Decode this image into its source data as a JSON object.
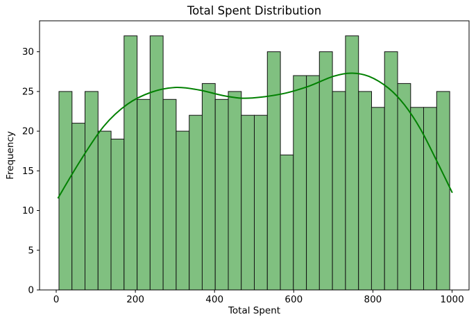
{
  "chart_data": {
    "type": "bar",
    "subtype": "histogram-with-kde-overlay",
    "title": "Total Spent Distribution",
    "xlabel": "Total Spent",
    "ylabel": "Frequency",
    "xlim": [
      -42,
      1043
    ],
    "ylim": [
      0,
      33.9
    ],
    "x_ticks": [
      0,
      200,
      400,
      600,
      800,
      1000
    ],
    "y_ticks": [
      0,
      5,
      10,
      15,
      20,
      25,
      30
    ],
    "grid": false,
    "legend": false,
    "bins": {
      "start": 7,
      "width": 32.9,
      "count": 30
    },
    "counts": [
      25,
      21,
      25,
      20,
      19,
      32,
      24,
      32,
      24,
      20,
      22,
      26,
      24,
      25,
      22,
      22,
      30,
      17,
      27,
      27,
      30,
      25,
      32,
      25,
      23,
      30,
      26,
      23,
      23,
      25
    ],
    "kde_curve": [
      [
        5,
        11.6
      ],
      [
        60,
        16.2
      ],
      [
        120,
        20.6
      ],
      [
        180,
        23.4
      ],
      [
        240,
        24.9
      ],
      [
        300,
        25.5
      ],
      [
        360,
        25.2
      ],
      [
        420,
        24.5
      ],
      [
        470,
        24.15
      ],
      [
        520,
        24.3
      ],
      [
        580,
        24.8
      ],
      [
        640,
        25.7
      ],
      [
        700,
        26.9
      ],
      [
        745,
        27.3
      ],
      [
        790,
        26.9
      ],
      [
        840,
        25.4
      ],
      [
        880,
        23.3
      ],
      [
        920,
        20.3
      ],
      [
        960,
        16.4
      ],
      [
        1000,
        12.3
      ]
    ],
    "colors": {
      "bar_fill": "#80c080",
      "bar_edge": "#111111",
      "kde": "#008000",
      "spine": "#000000",
      "text": "#000000",
      "background": "#ffffff"
    }
  }
}
